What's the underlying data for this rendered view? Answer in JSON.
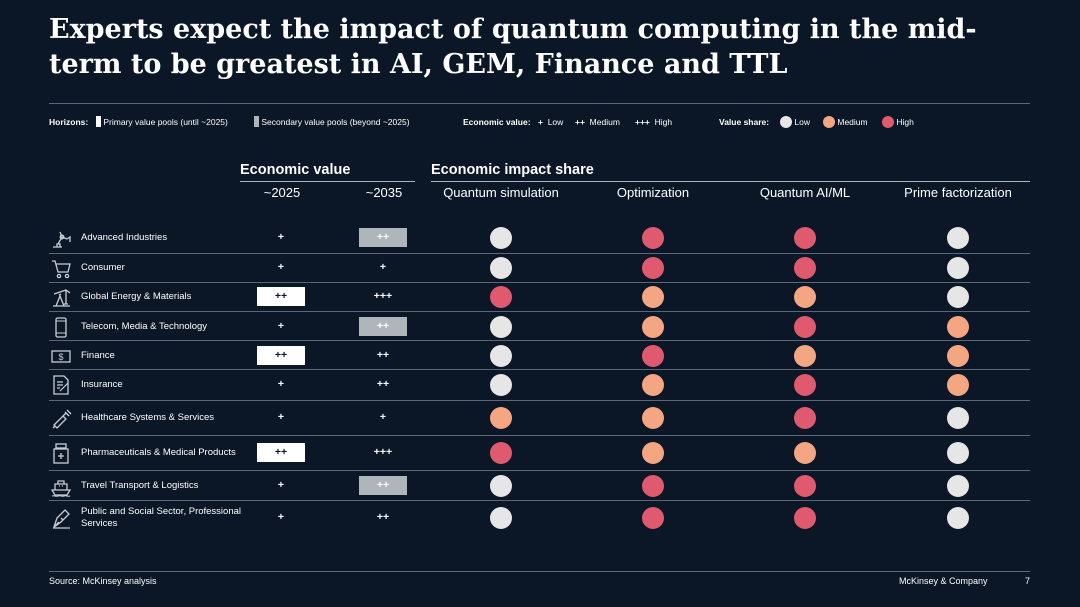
{
  "title": "Experts expect the impact of quantum computing in the mid-term to be greatest in AI, GEM, Finance and TTL",
  "legend": {
    "horizons_label": "Horizons:",
    "primary": "Primary value pools (until ~2025)",
    "secondary": "Secondary value pools (beyond ~2025)",
    "econ_label": "Economic value:",
    "econ_low_sym": "+",
    "econ_low": "Low",
    "econ_med_sym": "++",
    "econ_med": "Medium",
    "econ_high_sym": "+++",
    "econ_high": "High",
    "share_label": "Value share:",
    "share_low": "Low",
    "share_med": "Medium",
    "share_high": "High"
  },
  "colors": {
    "background": "#0b1626",
    "low": "#e6e6e6",
    "medium": "#f4a582",
    "high": "#e05a6f",
    "primary_box": "#ffffff",
    "secondary_box": "#b0b5bb"
  },
  "headers": {
    "economic_value": "Economic value",
    "impact_share": "Economic impact share",
    "y2025": "~2025",
    "y2035": "~2035",
    "areas": [
      "Quantum simulation",
      "Optimization",
      "Quantum AI/ML",
      "Prime factorization"
    ]
  },
  "rows": [
    {
      "industry": "Advanced Industries",
      "icon": "robot-arm-icon",
      "v2025": {
        "text": "+",
        "style": "none"
      },
      "v2035": {
        "text": "++",
        "style": "secondary"
      },
      "shares": [
        "low",
        "high",
        "high",
        "low"
      ]
    },
    {
      "industry": "Consumer",
      "icon": "shopping-cart-icon",
      "v2025": {
        "text": "+",
        "style": "none"
      },
      "v2035": {
        "text": "+",
        "style": "none"
      },
      "shares": [
        "low",
        "high",
        "high",
        "low"
      ]
    },
    {
      "industry": "Global Energy & Materials",
      "icon": "oil-pump-icon",
      "v2025": {
        "text": "++",
        "style": "primary"
      },
      "v2035": {
        "text": "+++",
        "style": "none"
      },
      "shares": [
        "high",
        "medium",
        "medium",
        "low"
      ]
    },
    {
      "industry": "Telecom, Media & Technology",
      "icon": "smartphone-icon",
      "v2025": {
        "text": "+",
        "style": "none"
      },
      "v2035": {
        "text": "++",
        "style": "secondary"
      },
      "shares": [
        "low",
        "medium",
        "high",
        "medium"
      ]
    },
    {
      "industry": "Finance",
      "icon": "banknote-icon",
      "v2025": {
        "text": "++",
        "style": "primary"
      },
      "v2035": {
        "text": "++",
        "style": "none"
      },
      "shares": [
        "low",
        "high",
        "medium",
        "medium"
      ]
    },
    {
      "industry": "Insurance",
      "icon": "document-pen-icon",
      "v2025": {
        "text": "+",
        "style": "none"
      },
      "v2035": {
        "text": "++",
        "style": "none"
      },
      "shares": [
        "low",
        "medium",
        "high",
        "medium"
      ]
    },
    {
      "industry": "Healthcare Systems & Services",
      "icon": "syringe-icon",
      "v2025": {
        "text": "+",
        "style": "none"
      },
      "v2035": {
        "text": "+",
        "style": "none"
      },
      "shares": [
        "medium",
        "medium",
        "high",
        "low"
      ]
    },
    {
      "industry": "Pharmaceuticals & Medical Products",
      "icon": "medicine-bottle-icon",
      "v2025": {
        "text": "++",
        "style": "primary"
      },
      "v2035": {
        "text": "+++",
        "style": "none"
      },
      "shares": [
        "high",
        "medium",
        "medium",
        "low"
      ]
    },
    {
      "industry": "Travel Transport & Logistics",
      "icon": "ship-icon",
      "v2025": {
        "text": "+",
        "style": "none"
      },
      "v2035": {
        "text": "++",
        "style": "secondary"
      },
      "shares": [
        "low",
        "high",
        "high",
        "low"
      ]
    },
    {
      "industry": "Public and Social Sector, Professional Services",
      "icon": "fountain-pen-icon",
      "v2025": {
        "text": "+",
        "style": "none"
      },
      "v2035": {
        "text": "++",
        "style": "none"
      },
      "shares": [
        "low",
        "high",
        "high",
        "low"
      ]
    }
  ],
  "footer": {
    "source": "Source: McKinsey analysis",
    "brand": "McKinsey & Company",
    "page": "7"
  }
}
